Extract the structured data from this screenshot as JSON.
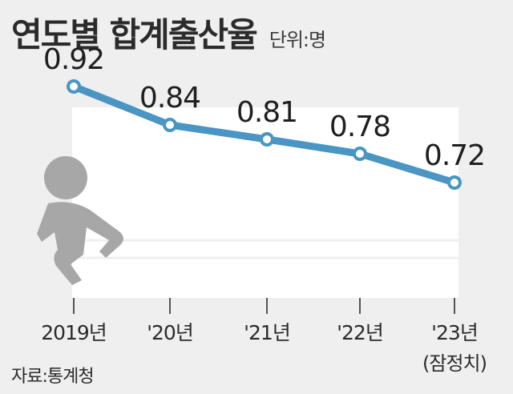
{
  "chart_data": {
    "type": "line",
    "title": "연도별 합계출산율",
    "unit": "단위:명",
    "categories": [
      "2019년",
      "'20년",
      "'21년",
      "'22년",
      "'23년"
    ],
    "category_notes": [
      "",
      "",
      "",
      "",
      "(잠정치)"
    ],
    "values": [
      0.92,
      0.84,
      0.81,
      0.78,
      0.72
    ],
    "value_labels": [
      "0.92",
      "0.84",
      "0.81",
      "0.78",
      "0.72"
    ],
    "ylim": [
      0.55,
      0.95
    ],
    "source": "자료:통계청",
    "line_color": "#4a95c3",
    "panel_color": "#ffffff",
    "icon_color": "#a7a7a7"
  }
}
